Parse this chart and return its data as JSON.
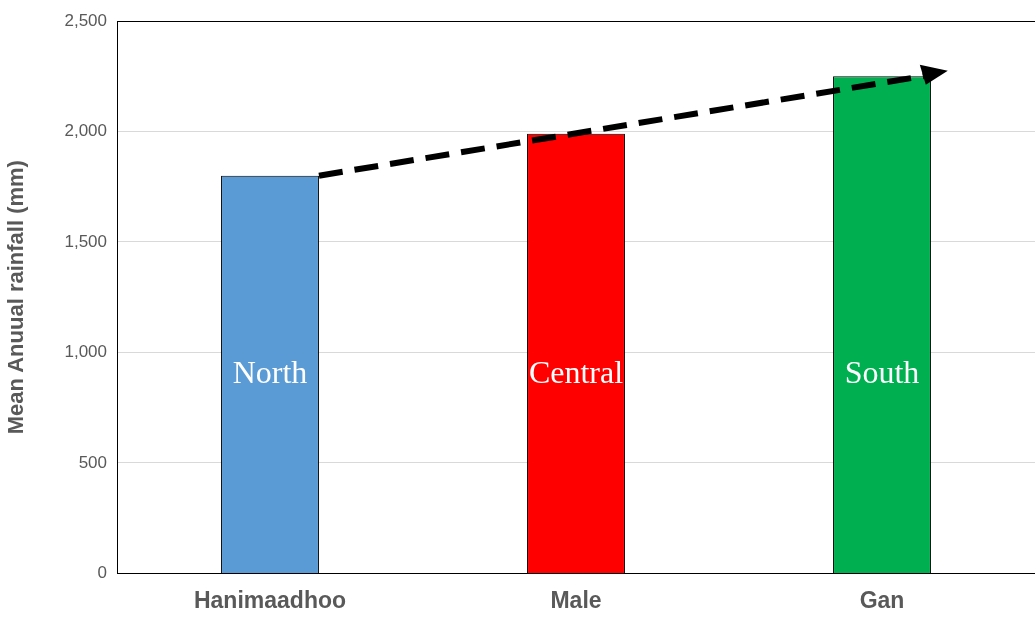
{
  "chart_data": {
    "type": "bar",
    "ylabel": "Mean Anuual rainfall (mm)",
    "categories": [
      "Hanimaadhoo",
      "Male",
      "Gan"
    ],
    "values": [
      1800,
      1990,
      2250
    ],
    "colors": [
      "#5b9bd5",
      "#ff0000",
      "#00b050"
    ],
    "ylim": [
      0,
      2500
    ],
    "yticks": [
      {
        "value": 0,
        "label": "0"
      },
      {
        "value": 500,
        "label": "500"
      },
      {
        "value": 1000,
        "label": "1,000"
      },
      {
        "value": 1500,
        "label": "1,500"
      },
      {
        "value": 2000,
        "label": "2,000"
      },
      {
        "value": 2500,
        "label": "2,500"
      }
    ],
    "grid": "y",
    "legend": false,
    "annotations": [
      "North",
      "Central",
      "South"
    ]
  }
}
